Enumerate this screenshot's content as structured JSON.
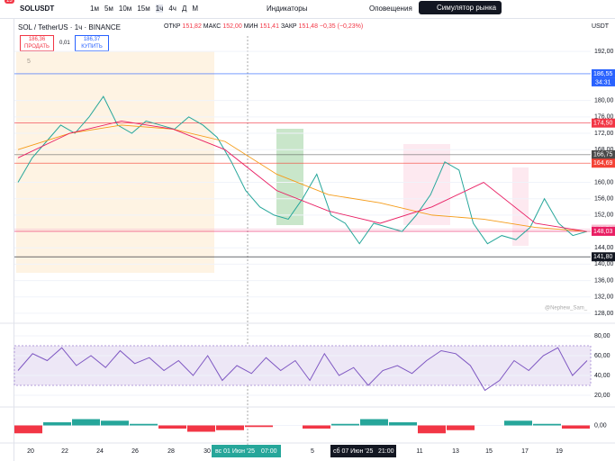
{
  "toolbar": {
    "badge": "13",
    "symbol": "SOLUSDT",
    "intervals": [
      "1м",
      "5м",
      "10м",
      "15м",
      "1ч",
      "4ч",
      "Д",
      "М"
    ],
    "indicators": "Индикаторы",
    "alerts": "Оповещения",
    "simulator": "Симулятор рынка"
  },
  "legend": {
    "title": "SOL / TetherUS · 1ч · BINANCE",
    "open_label": "ОТКР",
    "open": "151,82",
    "high_label": "МАКС",
    "high": "152,00",
    "low_label": "МИН",
    "low": "151,41",
    "close_label": "ЗАКР",
    "close": "151,48",
    "change": "−0,35 (−0,23%)",
    "sell_price": "186,36",
    "sell": "ПРОДАТЬ",
    "spread": "0,01",
    "buy_price": "186,37",
    "buy": "КУПИТЬ",
    "indicator_count": "5"
  },
  "currency": "USDT",
  "watermark": "@Nephew_Sam_",
  "countdown": "34:31",
  "time_axis": {
    "labels": [
      "20",
      "22",
      "24",
      "26",
      "28",
      "30",
      "5",
      "11",
      "13",
      "15",
      "17",
      "19"
    ],
    "cursor_date": "вс 01 Июн '25",
    "cursor_time": "07:00",
    "crosshair_date": "сб 07 Июн '25",
    "crosshair_time": "21:00"
  },
  "chart_data": [
    {
      "type": "line",
      "ylim": [
        126,
        196
      ],
      "yticks": [
        {
          "value": 128,
          "label": "128,00"
        },
        {
          "value": 132,
          "label": "132,00"
        },
        {
          "value": 136,
          "label": "136,00"
        },
        {
          "value": 140,
          "label": "140,00"
        },
        {
          "value": 144,
          "label": "144,00"
        },
        {
          "value": 152,
          "label": "152,00"
        },
        {
          "value": 156,
          "label": "156,00"
        },
        {
          "value": 160,
          "label": "160,00"
        },
        {
          "value": 168,
          "label": "168,00"
        },
        {
          "value": 172,
          "label": "172,00"
        },
        {
          "value": 176,
          "label": "176,00"
        },
        {
          "value": 180,
          "label": "180,00"
        },
        {
          "value": 192,
          "label": "192,00"
        }
      ],
      "price_labels": [
        {
          "value": 186.55,
          "label": "186,55",
          "color": "#2962ff"
        },
        {
          "value": 174.5,
          "label": "174,50",
          "color": "#f23645"
        },
        {
          "value": 166.75,
          "label": "166,75",
          "color": "#4a4a4a"
        },
        {
          "value": 164.69,
          "label": "164,69",
          "color": "#f44336"
        },
        {
          "value": 148.56,
          "label": "148,56",
          "color": "#f8bbd0"
        },
        {
          "value": 148.03,
          "label": "148,03",
          "color": "#e91e63"
        },
        {
          "value": 141.8,
          "label": "141,80",
          "color": "#131722"
        }
      ],
      "series": [
        {
          "color": "#26a69a",
          "values": [
            160,
            166,
            170,
            174,
            172,
            176,
            181,
            174,
            172,
            175,
            174,
            173,
            176,
            174,
            171,
            165,
            158,
            154,
            152,
            151,
            156,
            162,
            152,
            150,
            145,
            150,
            149,
            148,
            152,
            157,
            165,
            163,
            150,
            145,
            147,
            146,
            149,
            156,
            150,
            147,
            148
          ]
        },
        {
          "color": "#f59c1a",
          "values": [
            168,
            172,
            174,
            173,
            170,
            162,
            157,
            155,
            152,
            151,
            149,
            148
          ]
        },
        {
          "color": "#e91e63",
          "values": [
            166,
            172,
            175,
            173,
            168,
            158,
            153,
            150,
            154,
            160,
            150,
            148
          ]
        }
      ]
    },
    {
      "type": "line",
      "ylim": [
        10,
        90
      ],
      "band": [
        30,
        70
      ],
      "yticks": [
        {
          "value": 20,
          "label": "20,00"
        },
        {
          "value": 40,
          "label": "40,00"
        },
        {
          "value": 60,
          "label": "60,00"
        },
        {
          "value": 80,
          "label": "80,00"
        }
      ],
      "series": [
        {
          "color": "#7e57c2",
          "values": [
            45,
            62,
            55,
            68,
            50,
            60,
            48,
            65,
            52,
            58,
            45,
            55,
            40,
            60,
            35,
            50,
            42,
            58,
            45,
            55,
            35,
            62,
            40,
            48,
            30,
            45,
            50,
            42,
            55,
            65,
            62,
            50,
            25,
            35,
            55,
            45,
            60,
            68,
            40,
            55
          ]
        }
      ]
    },
    {
      "type": "bar",
      "ylim": [
        -10,
        10
      ],
      "yticks": [
        {
          "value": 0,
          "label": "0,00"
        }
      ],
      "values": [
        -5,
        2,
        4,
        3,
        1,
        -2,
        -4,
        -3,
        -1,
        0,
        -2,
        1,
        4,
        2,
        -5,
        -3,
        0,
        3,
        1,
        -2
      ]
    }
  ]
}
